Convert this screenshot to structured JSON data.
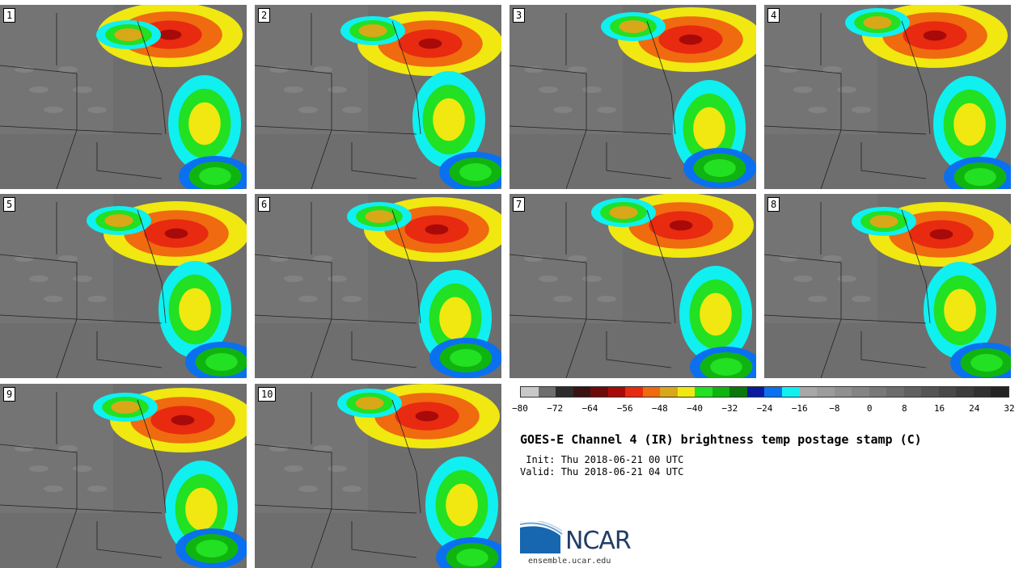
{
  "panels": [
    {
      "label": "1"
    },
    {
      "label": "2"
    },
    {
      "label": "3"
    },
    {
      "label": "4"
    },
    {
      "label": "5"
    },
    {
      "label": "6"
    },
    {
      "label": "7"
    },
    {
      "label": "8"
    },
    {
      "label": "9"
    },
    {
      "label": "10"
    }
  ],
  "colorbar": {
    "colors": [
      "#c8c8c8",
      "#6e6e6e",
      "#2c2c2c",
      "#3a1212",
      "#6e0a0a",
      "#a80a0a",
      "#e82a10",
      "#f06a10",
      "#d8a818",
      "#f0e810",
      "#22e022",
      "#10b410",
      "#0a780a",
      "#0a1aa0",
      "#0a70f0",
      "#10f0f0",
      "#a8a8a8",
      "#9c9c9c",
      "#909090",
      "#848484",
      "#787878",
      "#6c6c6c",
      "#606060",
      "#545454",
      "#484848",
      "#3c3c3c",
      "#303030",
      "#242424"
    ],
    "tick_labels": [
      "−80",
      "−72",
      "−64",
      "−56",
      "−48",
      "−40",
      "−32",
      "−24",
      "−16",
      "−8",
      "0",
      "8",
      "16",
      "24",
      "32"
    ]
  },
  "title": "GOES-E Channel 4 (IR) brightness temp postage stamp (C)",
  "init_line": " Init: Thu 2018-06-21 00 UTC",
  "valid_line": "Valid: Thu 2018-06-21 04 UTC",
  "logo_text": "NCAR",
  "url": "ensemble.ucar.edu"
}
